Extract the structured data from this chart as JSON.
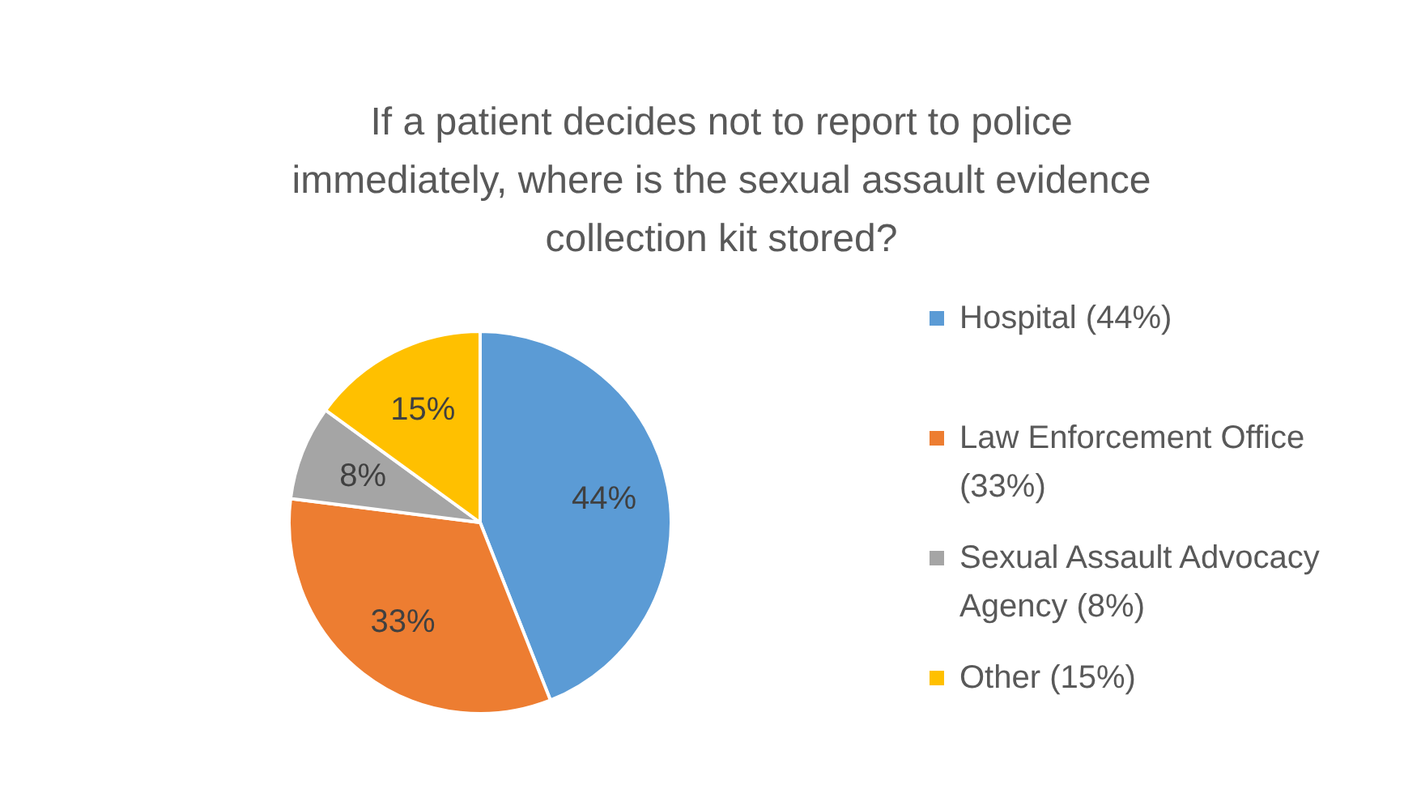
{
  "chart_data": {
    "type": "pie",
    "title": "If a patient decides not to report to police immediately, where is the sexual assault evidence collection kit stored?",
    "categories": [
      "Hospital (44%)",
      "Law Enforcement Office (33%)",
      "Sexual Assault Advocacy Agency (8%)",
      "Other (15%)"
    ],
    "values": [
      44,
      33,
      8,
      15
    ],
    "colors": [
      "#5b9bd5",
      "#ed7d31",
      "#a5a5a5",
      "#ffc000"
    ],
    "value_labels": [
      "44%",
      "33%",
      "8%",
      "15%"
    ],
    "legend": "right"
  }
}
